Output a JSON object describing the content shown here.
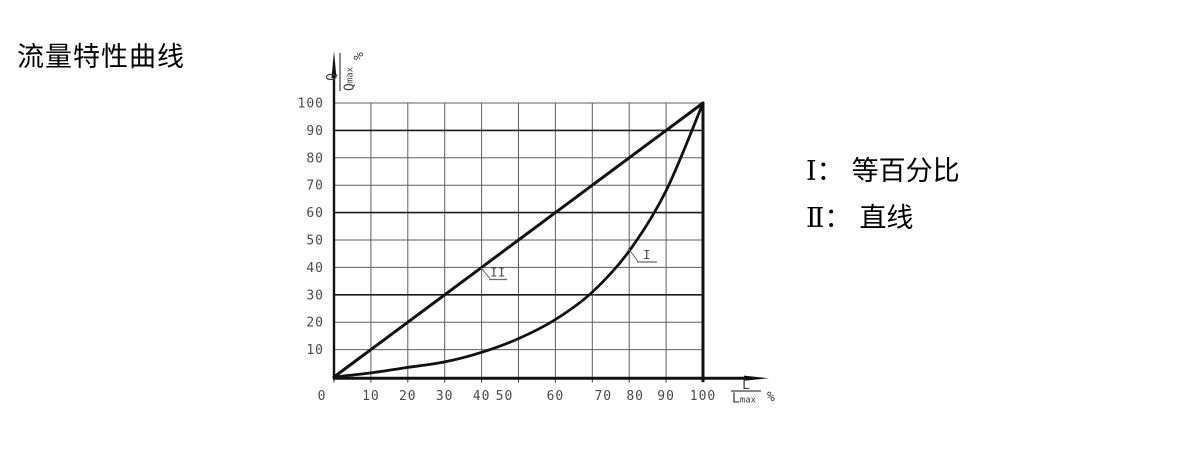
{
  "page": {
    "title": "流量特性曲线"
  },
  "legend": {
    "items": [
      {
        "numeral": "Ⅰ",
        "colon": "：",
        "label": "等百分比"
      },
      {
        "numeral": "Ⅱ",
        "colon": "：",
        "label": "直线"
      }
    ]
  },
  "chart_data": {
    "type": "line",
    "title": "流量特性曲线",
    "x": [
      0,
      10,
      20,
      30,
      40,
      50,
      60,
      70,
      80,
      90,
      100
    ],
    "series": [
      {
        "name": "Ⅰ",
        "label": "I",
        "meaning": "等百分比",
        "values": [
          0,
          1.5,
          3.5,
          5.5,
          9,
          14,
          21,
          31,
          46,
          68,
          100
        ]
      },
      {
        "name": "Ⅱ",
        "label": "II",
        "meaning": "直线",
        "values": [
          0,
          10,
          20,
          30,
          40,
          50,
          60,
          70,
          80,
          90,
          100
        ]
      }
    ],
    "x_axis": {
      "range": [
        0,
        100
      ],
      "ticks": [
        0,
        10,
        20,
        30,
        40,
        50,
        60,
        70,
        80,
        90,
        100
      ],
      "unit": {
        "numerator": "L",
        "denominator_base": "L",
        "denominator_sub": "max",
        "suffix": "%"
      }
    },
    "y_axis": {
      "range": [
        0,
        100
      ],
      "ticks": [
        100,
        90,
        80,
        70,
        60,
        50,
        40,
        30,
        20,
        10
      ],
      "unit": {
        "numerator": "Q",
        "denominator_base": "Q",
        "denominator_sub": "max",
        "suffix": "%"
      }
    },
    "grid": true,
    "legend_position": "right",
    "colors": {
      "curve": "#121212",
      "grid": "#5f5f5f",
      "grid_major": "#1c1c1c",
      "axis": "#111111",
      "tick_text": "#4a4a4a"
    }
  }
}
